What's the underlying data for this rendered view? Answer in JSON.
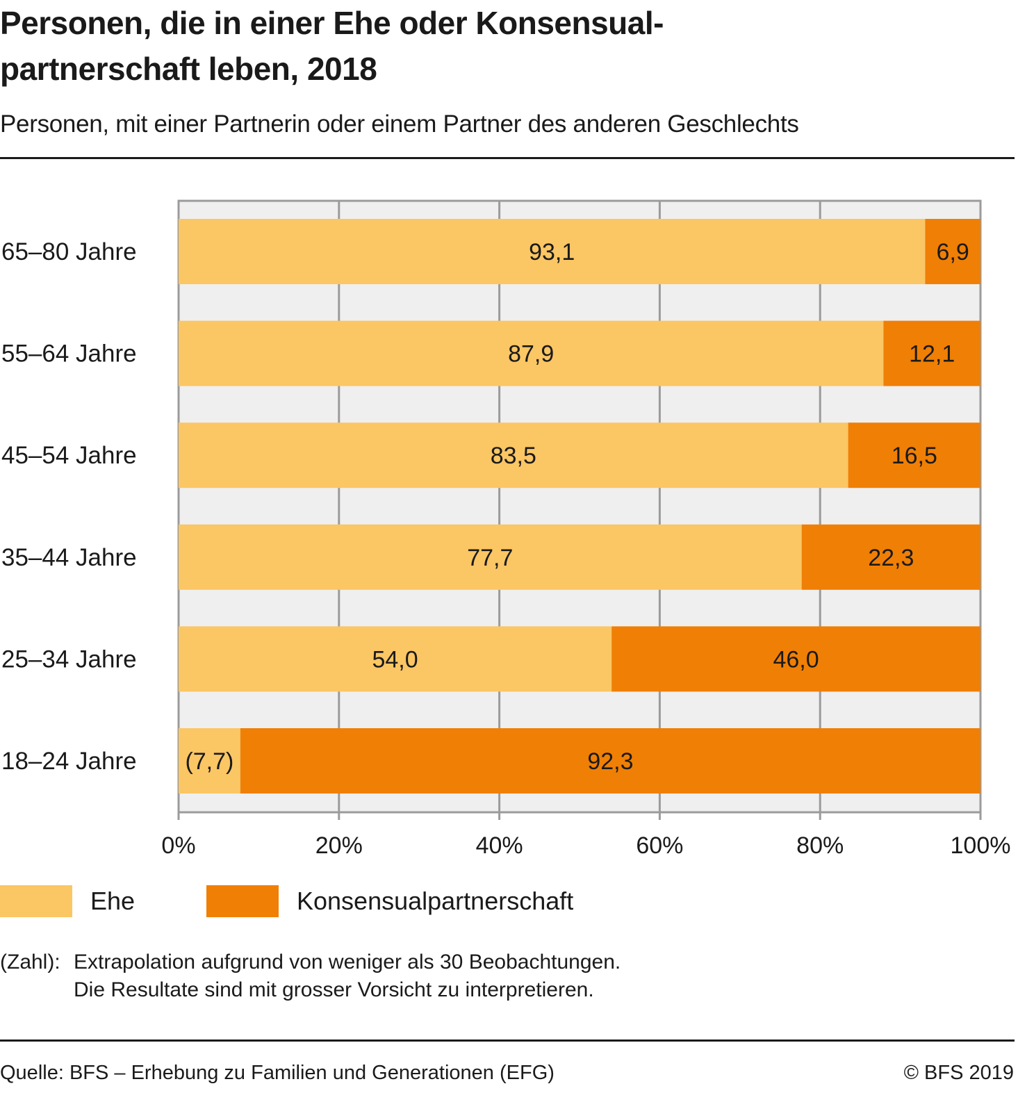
{
  "header": {
    "title_line1": "Personen, die in einer Ehe oder Konsensual-",
    "title_line2": "partnerschaft leben, 2018",
    "subtitle": "Personen, mit einer Partnerin oder einem Partner des anderen Geschlechts"
  },
  "colors": {
    "ehe": "#fbc664",
    "konsensual": "#f07f05",
    "plot_background": "#efefef",
    "grid": "#9b9b9b",
    "text": "#1a1a1a"
  },
  "chart_data": {
    "type": "bar",
    "orientation": "horizontal",
    "stacked": true,
    "title": "Personen, die in einer Ehe oder Konsensualpartnerschaft leben, 2018",
    "subtitle": "Personen, mit einer Partnerin oder einem Partner des anderen Geschlechts",
    "categories": [
      "65–80 Jahre",
      "55–64 Jahre",
      "45–54 Jahre",
      "35–44 Jahre",
      "25–34 Jahre",
      "18–24 Jahre"
    ],
    "series": [
      {
        "name": "Ehe",
        "values": [
          93.1,
          87.9,
          83.5,
          77.7,
          54.0,
          7.7
        ],
        "labels": [
          "93,1",
          "87,9",
          "83,5",
          "77,7",
          "54,0",
          "(7,7)"
        ]
      },
      {
        "name": "Konsensualpartnerschaft",
        "values": [
          6.9,
          12.1,
          16.5,
          22.3,
          46.0,
          92.3
        ],
        "labels": [
          "6,9",
          "12,1",
          "16,5",
          "22,3",
          "46,0",
          "92,3"
        ]
      }
    ],
    "xlabel": "",
    "ylabel": "",
    "xlim": [
      0,
      100
    ],
    "xticks": [
      0,
      20,
      40,
      60,
      80,
      100
    ],
    "xtick_labels": [
      "0%",
      "20%",
      "40%",
      "60%",
      "80%",
      "100%"
    ],
    "grid": true,
    "legend_position": "bottom-left"
  },
  "legend": {
    "items": [
      {
        "label": "Ehe"
      },
      {
        "label": "Konsensualpartnerschaft"
      }
    ]
  },
  "note": {
    "key": "(Zahl):",
    "line1": "Extrapolation aufgrund von weniger als 30 Beobachtungen.",
    "line2": "Die Resultate sind mit grosser Vorsicht zu interpretieren."
  },
  "footer": {
    "source": "Quelle: BFS – Erhebung zu Familien und Generationen (EFG)",
    "copyright": "© BFS 2019"
  }
}
